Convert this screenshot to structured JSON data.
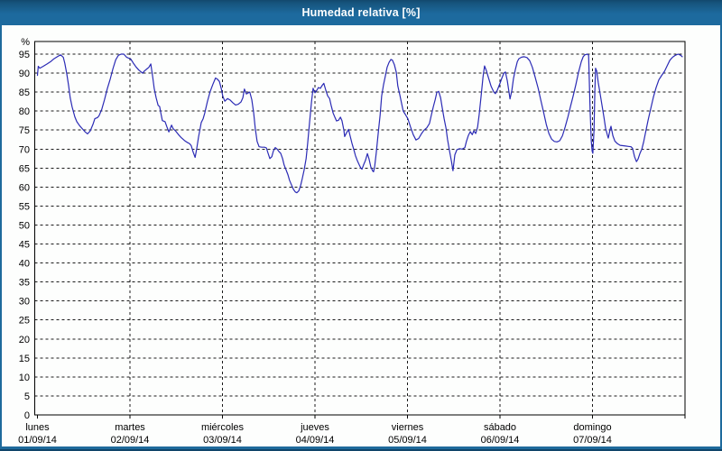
{
  "window": {
    "title": "Humedad relativa [%]"
  },
  "colors": {
    "frame": "#1E6A9C",
    "frame_dark": "#10456A",
    "content_bg": "#FDFEFD",
    "plot_border": "#000000",
    "grid": "#1A1A1A",
    "line": "#2B2BB5",
    "text": "#000000",
    "title_text": "#FFFFFF"
  },
  "chart_data": {
    "type": "line",
    "title": "Humedad relativa [%]",
    "ylabel": "%",
    "y_unit_label": "%",
    "ylim": [
      0,
      98.3
    ],
    "y_ticks": [
      0,
      5,
      10,
      15,
      20,
      25,
      30,
      35,
      40,
      45,
      50,
      55,
      60,
      65,
      70,
      75,
      80,
      85,
      90,
      95
    ],
    "x_range_hours": [
      0,
      168
    ],
    "grid": "dashed",
    "legend": "none",
    "x_days": [
      {
        "name": "lunes",
        "date": "01/09/14"
      },
      {
        "name": "martes",
        "date": "02/09/14"
      },
      {
        "name": "miércoles",
        "date": "03/09/14"
      },
      {
        "name": "jueves",
        "date": "04/09/14"
      },
      {
        "name": "viernes",
        "date": "05/09/14"
      },
      {
        "name": "sábado",
        "date": "06/09/14"
      },
      {
        "name": "domingo",
        "date": "07/09/14"
      }
    ],
    "series": [
      {
        "name": "Humedad relativa",
        "unit": "%",
        "points": [
          [
            0,
            89.4
          ],
          [
            0.2,
            91.8
          ],
          [
            0.6,
            91.3
          ],
          [
            1.5,
            91.8
          ],
          [
            2.5,
            92.4
          ],
          [
            3.4,
            93
          ],
          [
            4.3,
            93.8
          ],
          [
            5.3,
            94.4
          ],
          [
            6,
            94.8
          ],
          [
            6.7,
            94.2
          ],
          [
            7.1,
            92.6
          ],
          [
            7.6,
            89.8
          ],
          [
            8.1,
            86.6
          ],
          [
            8.5,
            83.5
          ],
          [
            9,
            81.1
          ],
          [
            9.7,
            78.5
          ],
          [
            10.2,
            77.2
          ],
          [
            10.9,
            76.2
          ],
          [
            11.6,
            75.4
          ],
          [
            12.3,
            74.6
          ],
          [
            13,
            74
          ],
          [
            13.7,
            74.8
          ],
          [
            14.4,
            76.5
          ],
          [
            14.9,
            78
          ],
          [
            15.6,
            78.3
          ],
          [
            16,
            78.8
          ],
          [
            16.7,
            80.5
          ],
          [
            17.4,
            83
          ],
          [
            18.1,
            85.8
          ],
          [
            18.9,
            88.5
          ],
          [
            19.6,
            91.2
          ],
          [
            20.3,
            93.5
          ],
          [
            21,
            94.7
          ],
          [
            21.7,
            95
          ],
          [
            22.4,
            95
          ],
          [
            23.1,
            94.2
          ],
          [
            24.2,
            93.7
          ],
          [
            24.9,
            92.6
          ],
          [
            25.6,
            91.6
          ],
          [
            26.3,
            90.8
          ],
          [
            27.3,
            90
          ],
          [
            27.7,
            90.5
          ],
          [
            28.5,
            91.2
          ],
          [
            28.9,
            91.5
          ],
          [
            29.4,
            92.4
          ],
          [
            29.9,
            89
          ],
          [
            30.3,
            85.9
          ],
          [
            30.8,
            83.5
          ],
          [
            31.3,
            81.5
          ],
          [
            31.7,
            81.2
          ],
          [
            32,
            79.5
          ],
          [
            32.4,
            77.5
          ],
          [
            33.1,
            77.2
          ],
          [
            33.6,
            75.8
          ],
          [
            34.1,
            74.5
          ],
          [
            34.8,
            76.3
          ],
          [
            35.2,
            75.4
          ],
          [
            35.9,
            74.7
          ],
          [
            36.6,
            73.8
          ],
          [
            37.3,
            73
          ],
          [
            38.1,
            72.3
          ],
          [
            38.8,
            71.8
          ],
          [
            39.5,
            71.4
          ],
          [
            39.9,
            70.9
          ],
          [
            40.4,
            69.2
          ],
          [
            40.9,
            67.8
          ],
          [
            41.3,
            70
          ],
          [
            41.8,
            73.2
          ],
          [
            42.5,
            77
          ],
          [
            43,
            78
          ],
          [
            43.4,
            79.5
          ],
          [
            44.1,
            82.5
          ],
          [
            44.8,
            85.1
          ],
          [
            45.5,
            87
          ],
          [
            46.2,
            88.7
          ],
          [
            46.7,
            88.4
          ],
          [
            47.2,
            87.8
          ],
          [
            47.7,
            85.9
          ],
          [
            48.1,
            83.9
          ],
          [
            48.6,
            82.6
          ],
          [
            49.3,
            83.3
          ],
          [
            50,
            82.9
          ],
          [
            50.7,
            82.2
          ],
          [
            51.4,
            81.6
          ],
          [
            52.1,
            81.8
          ],
          [
            52.8,
            82.4
          ],
          [
            53.3,
            83.5
          ],
          [
            53.7,
            85.8
          ],
          [
            54.2,
            84.5
          ],
          [
            54.7,
            84.8
          ],
          [
            55.1,
            85
          ],
          [
            55.6,
            83
          ],
          [
            56.1,
            79.5
          ],
          [
            56.5,
            75.5
          ],
          [
            57,
            72
          ],
          [
            57.5,
            70.6
          ],
          [
            58.2,
            70.5
          ],
          [
            58.9,
            70.5
          ],
          [
            59.4,
            70.3
          ],
          [
            59.8,
            69
          ],
          [
            60.3,
            67.5
          ],
          [
            60.8,
            68
          ],
          [
            61.2,
            69.5
          ],
          [
            61.7,
            70.4
          ],
          [
            62.2,
            70
          ],
          [
            62.6,
            69.4
          ],
          [
            63.1,
            68.9
          ],
          [
            63.6,
            67.5
          ],
          [
            64,
            65.8
          ],
          [
            64.5,
            64.5
          ],
          [
            65,
            63.2
          ],
          [
            65.4,
            61.8
          ],
          [
            65.9,
            60.6
          ],
          [
            66.4,
            59.4
          ],
          [
            66.9,
            58.7
          ],
          [
            67.3,
            58.5
          ],
          [
            67.8,
            59
          ],
          [
            68.3,
            60.5
          ],
          [
            68.7,
            62.2
          ],
          [
            69.2,
            64.5
          ],
          [
            69.7,
            67.5
          ],
          [
            70.1,
            71.5
          ],
          [
            70.6,
            77
          ],
          [
            71.1,
            82.5
          ],
          [
            71.5,
            86
          ],
          [
            72,
            84.8
          ],
          [
            72.5,
            85.5
          ],
          [
            72.9,
            86.2
          ],
          [
            73.4,
            86
          ],
          [
            73.9,
            86.8
          ],
          [
            74.3,
            87.3
          ],
          [
            74.8,
            85.5
          ],
          [
            75.3,
            84
          ],
          [
            75.8,
            83.3
          ],
          [
            76.2,
            81.5
          ],
          [
            76.7,
            79.5
          ],
          [
            77.2,
            78.3
          ],
          [
            77.6,
            77.4
          ],
          [
            78.1,
            77.6
          ],
          [
            78.6,
            78.4
          ],
          [
            79,
            77.5
          ],
          [
            79.5,
            75
          ],
          [
            79.7,
            73.3
          ],
          [
            80.2,
            74.3
          ],
          [
            80.7,
            75.2
          ],
          [
            81.1,
            73.5
          ],
          [
            81.6,
            71.5
          ],
          [
            82.1,
            69.8
          ],
          [
            82.5,
            68.3
          ],
          [
            83,
            66.9
          ],
          [
            83.5,
            65.8
          ],
          [
            83.9,
            65
          ],
          [
            84.2,
            64.7
          ],
          [
            84.6,
            65.8
          ],
          [
            85.1,
            67
          ],
          [
            85.6,
            68.8
          ],
          [
            86,
            67.5
          ],
          [
            86.5,
            65.3
          ],
          [
            87,
            64.2
          ],
          [
            87.2,
            64
          ],
          [
            87.5,
            65.5
          ],
          [
            87.9,
            69
          ],
          [
            88.4,
            74
          ],
          [
            88.9,
            79
          ],
          [
            89.3,
            84
          ],
          [
            89.8,
            87
          ],
          [
            90.3,
            89.5
          ],
          [
            90.7,
            91.5
          ],
          [
            91.2,
            92.8
          ],
          [
            91.7,
            93.6
          ],
          [
            92.1,
            93.4
          ],
          [
            92.6,
            92.2
          ],
          [
            93.1,
            90.2
          ],
          [
            93.5,
            86.6
          ],
          [
            94,
            84.3
          ],
          [
            94.5,
            81.9
          ],
          [
            94.9,
            80
          ],
          [
            95.4,
            79.2
          ],
          [
            96.1,
            78
          ],
          [
            96.8,
            75.8
          ],
          [
            97.5,
            73.8
          ],
          [
            98.2,
            72.4
          ],
          [
            98.9,
            72.8
          ],
          [
            99.6,
            74
          ],
          [
            100.3,
            75
          ],
          [
            101,
            75.6
          ],
          [
            101.7,
            76.7
          ],
          [
            102.2,
            79
          ],
          [
            102.7,
            81.1
          ],
          [
            103.2,
            83.1
          ],
          [
            103.6,
            84.9
          ],
          [
            104.1,
            85.2
          ],
          [
            104.6,
            83.5
          ],
          [
            105,
            81
          ],
          [
            105.5,
            78
          ],
          [
            106,
            75.5
          ],
          [
            106.4,
            72.5
          ],
          [
            106.9,
            69.5
          ],
          [
            107.4,
            66.8
          ],
          [
            107.8,
            64.3
          ],
          [
            108.3,
            68.5
          ],
          [
            108.8,
            69.8
          ],
          [
            109.5,
            70.1
          ],
          [
            110.2,
            70
          ],
          [
            110.9,
            70.4
          ],
          [
            111.3,
            72
          ],
          [
            111.8,
            73.6
          ],
          [
            112.3,
            74.6
          ],
          [
            112.8,
            73.8
          ],
          [
            113.2,
            74.8
          ],
          [
            113.7,
            74.1
          ],
          [
            114.2,
            75.8
          ],
          [
            114.6,
            79
          ],
          [
            115.1,
            84
          ],
          [
            115.6,
            89
          ],
          [
            116,
            91.9
          ],
          [
            116.5,
            90.5
          ],
          [
            117,
            88.8
          ],
          [
            117.7,
            86.5
          ],
          [
            118.4,
            85
          ],
          [
            118.8,
            84.6
          ],
          [
            119.3,
            85.5
          ],
          [
            120,
            87.3
          ],
          [
            120.5,
            88.7
          ],
          [
            121,
            90
          ],
          [
            121.4,
            90.3
          ],
          [
            121.9,
            88
          ],
          [
            122.4,
            84.5
          ],
          [
            122.6,
            83.2
          ],
          [
            123.1,
            85.5
          ],
          [
            123.5,
            88.5
          ],
          [
            124,
            91
          ],
          [
            124.5,
            93
          ],
          [
            124.9,
            93.8
          ],
          [
            125.6,
            94.2
          ],
          [
            126.3,
            94.3
          ],
          [
            127,
            94.1
          ],
          [
            127.7,
            93.3
          ],
          [
            128.4,
            91.5
          ],
          [
            129.1,
            89
          ],
          [
            129.9,
            86
          ],
          [
            130.6,
            82.8
          ],
          [
            131.3,
            79.7
          ],
          [
            132,
            76.5
          ],
          [
            132.7,
            74.1
          ],
          [
            133.4,
            72.6
          ],
          [
            134.1,
            72
          ],
          [
            134.8,
            71.9
          ],
          [
            135.5,
            72.2
          ],
          [
            136.2,
            73.5
          ],
          [
            136.9,
            75.8
          ],
          [
            137.6,
            78.4
          ],
          [
            138.3,
            81.3
          ],
          [
            139,
            84
          ],
          [
            139.7,
            87
          ],
          [
            140.4,
            90.3
          ],
          [
            141.1,
            93
          ],
          [
            141.6,
            94.3
          ],
          [
            142,
            94.8
          ],
          [
            142.7,
            95
          ],
          [
            143,
            94.7
          ],
          [
            143.4,
            80
          ],
          [
            143.7,
            72
          ],
          [
            143.9,
            69.5
          ],
          [
            144.1,
            68.9
          ],
          [
            144.4,
            75
          ],
          [
            144.6,
            85
          ],
          [
            144.8,
            91.3
          ],
          [
            145.1,
            90.5
          ],
          [
            145.5,
            87.5
          ],
          [
            146,
            84.5
          ],
          [
            146.5,
            81.3
          ],
          [
            147,
            78.2
          ],
          [
            147.4,
            75.5
          ],
          [
            147.9,
            73.5
          ],
          [
            148.1,
            72.9
          ],
          [
            148.6,
            75.3
          ],
          [
            148.8,
            76
          ],
          [
            149.3,
            73.5
          ],
          [
            149.8,
            72.1
          ],
          [
            150.5,
            71.4
          ],
          [
            151.2,
            71
          ],
          [
            151.9,
            70.9
          ],
          [
            152.6,
            70.8
          ],
          [
            153.3,
            70.7
          ],
          [
            154,
            70.6
          ],
          [
            154.4,
            70.2
          ],
          [
            154.9,
            68
          ],
          [
            155.4,
            66.7
          ],
          [
            155.8,
            67.3
          ],
          [
            156.3,
            68.8
          ],
          [
            156.8,
            70
          ],
          [
            157.3,
            72
          ],
          [
            157.7,
            74
          ],
          [
            158.4,
            77.5
          ],
          [
            159.1,
            80.6
          ],
          [
            159.8,
            83.7
          ],
          [
            160.5,
            86.2
          ],
          [
            161.2,
            88.2
          ],
          [
            161.9,
            89.3
          ],
          [
            162.7,
            90.5
          ],
          [
            163.4,
            92
          ],
          [
            164.1,
            93.4
          ],
          [
            164.8,
            94.2
          ],
          [
            165.5,
            94.7
          ],
          [
            166.2,
            95
          ],
          [
            166.9,
            94.7
          ],
          [
            167.3,
            94.3
          ]
        ]
      }
    ]
  }
}
